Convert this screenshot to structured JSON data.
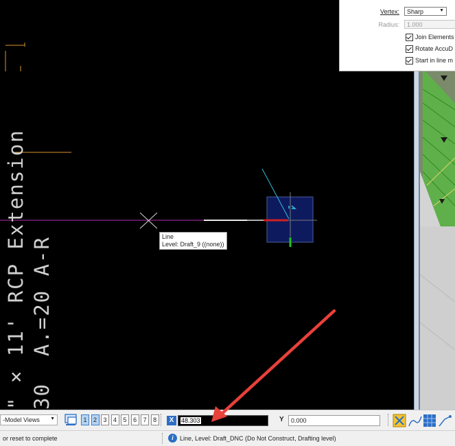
{
  "drawing": {
    "title_line_1": "\" × 11' RCP Extension",
    "title_line_2": "A.=20 A-R",
    "title_line_2_prefix": "30"
  },
  "tooltip": {
    "line1": "Line",
    "line2": "Level: Draft_9 ((none))"
  },
  "settings_panel": {
    "vertex_label": "Vertex:",
    "vertex_value": "Sharp",
    "radius_label": "Radius:",
    "radius_value": "1.000",
    "join_elements": "Join Elements",
    "rotate_accudraw": "Rotate AccuD",
    "start_in_line": "Start in line m"
  },
  "toolbar": {
    "model_views": "-Model Views",
    "view_numbers": [
      "1",
      "2",
      "3",
      "4",
      "5",
      "6",
      "7",
      "8"
    ],
    "x_label": "X",
    "x_value": "48.303",
    "y_label": "Y",
    "y_value": "0.000"
  },
  "status": {
    "prompt": "or reset to complete",
    "message": "Line, Level: Draft_DNC (Do Not Construct, Drafting level)"
  },
  "colors": {
    "accent_blue": "#2d6fc5",
    "annotation_red": "#e8403a",
    "magenta_line": "#b030b0"
  }
}
